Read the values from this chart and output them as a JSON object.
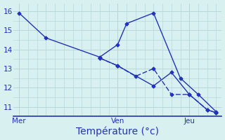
{
  "xlabel": "Température (°c)",
  "background_color": "#d8f0f0",
  "grid_color": "#b8d8d8",
  "line_color": "#2233bb",
  "ylim": [
    10.5,
    16.4
  ],
  "xlim": [
    -0.3,
    11.3
  ],
  "series1_x": [
    0,
    1.5,
    4.5,
    5.5,
    6.0,
    7.5,
    9.0,
    10.0,
    11.0
  ],
  "series1_y": [
    15.9,
    14.6,
    13.6,
    14.25,
    15.35,
    15.9,
    12.5,
    11.65,
    10.75
  ],
  "series2_x": [
    4.5,
    5.5,
    6.5,
    7.5,
    8.5,
    9.5,
    10.5,
    11.0
  ],
  "series2_y": [
    13.55,
    13.15,
    12.6,
    13.0,
    11.65,
    11.65,
    10.85,
    10.7
  ],
  "series3_x": [
    4.5,
    5.5,
    7.5,
    8.5,
    9.5,
    10.5,
    11.0
  ],
  "series3_y": [
    13.55,
    13.15,
    12.1,
    12.8,
    11.65,
    10.85,
    10.7
  ],
  "xtick_positions": [
    0,
    5.5,
    9.5
  ],
  "xtick_labels": [
    "Mer",
    "Ven",
    "Jeu"
  ],
  "vline_positions": [
    0,
    5.5,
    9.5
  ],
  "ytick_positions": [
    11,
    12,
    13,
    14,
    15,
    16
  ],
  "xlabel_fontsize": 10,
  "xlabel_color": "#2233bb",
  "tick_fontsize": 7.5
}
